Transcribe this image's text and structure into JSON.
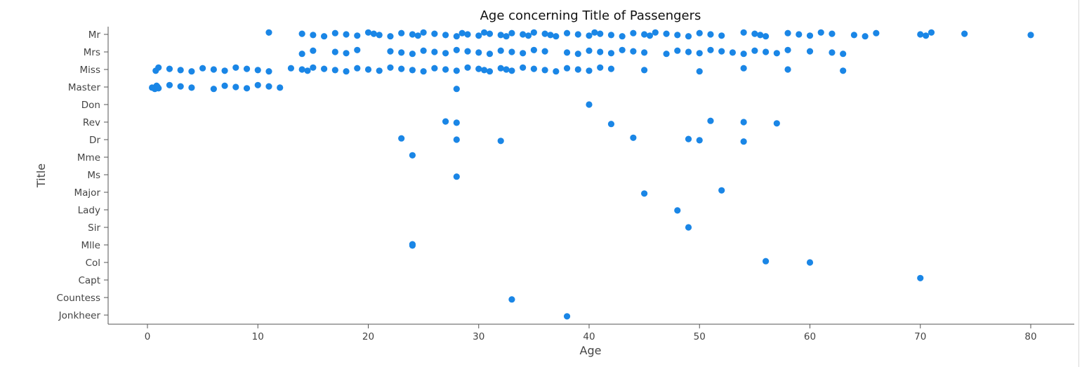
{
  "chart_data": {
    "type": "scatter",
    "title": "Age concerning Title of Passengers",
    "xlabel": "Age",
    "ylabel": "Title",
    "xlim": [
      -3.5,
      84.5
    ],
    "xticks": [
      0,
      10,
      20,
      30,
      40,
      50,
      60,
      70,
      80
    ],
    "categories": [
      "Mr",
      "Mrs",
      "Miss",
      "Master",
      "Don",
      "Rev",
      "Dr",
      "Mme",
      "Ms",
      "Major",
      "Lady",
      "Sir",
      "Mlle",
      "Col",
      "Capt",
      "Countess",
      "Jonkheer"
    ],
    "grid": false,
    "legend": "none",
    "point_color": "#1a86e6",
    "series": [
      {
        "category": "Mr",
        "x": [
          11,
          14,
          15,
          16,
          17,
          18,
          19,
          20,
          20.5,
          21,
          22,
          23,
          24,
          24.5,
          25,
          26,
          27,
          28,
          28.5,
          29,
          30,
          30.5,
          31,
          32,
          32.5,
          33,
          34,
          34.5,
          35,
          36,
          36.5,
          37,
          38,
          39,
          40,
          40.5,
          41,
          42,
          43,
          44,
          45,
          45.5,
          46,
          47,
          48,
          49,
          50,
          51,
          52,
          54,
          55,
          55.5,
          56,
          58,
          59,
          60,
          61,
          62,
          64,
          65,
          66,
          70,
          70.5,
          71,
          74,
          80
        ]
      },
      {
        "category": "Mrs",
        "x": [
          14,
          15,
          17,
          18,
          19,
          22,
          23,
          24,
          25,
          26,
          27,
          28,
          29,
          30,
          31,
          32,
          33,
          34,
          35,
          36,
          38,
          39,
          40,
          41,
          42,
          43,
          44,
          45,
          47,
          48,
          49,
          50,
          51,
          52,
          53,
          54,
          55,
          56,
          57,
          58,
          60,
          62,
          63
        ]
      },
      {
        "category": "Miss",
        "x": [
          0.75,
          1,
          2,
          3,
          4,
          5,
          6,
          7,
          8,
          9,
          10,
          11,
          13,
          14,
          14.5,
          15,
          16,
          17,
          18,
          19,
          20,
          21,
          22,
          23,
          24,
          25,
          26,
          27,
          28,
          29,
          30,
          30.5,
          31,
          32,
          32.5,
          33,
          34,
          35,
          36,
          37,
          38,
          39,
          40,
          41,
          42,
          45,
          50,
          54,
          58,
          63
        ]
      },
      {
        "category": "Master",
        "x": [
          0.42,
          0.67,
          0.83,
          0.92,
          1,
          2,
          3,
          4,
          6,
          7,
          8,
          9,
          10,
          11,
          12,
          28
        ]
      },
      {
        "category": "Don",
        "x": [
          40
        ]
      },
      {
        "category": "Rev",
        "x": [
          27,
          28,
          42,
          51,
          54,
          57
        ]
      },
      {
        "category": "Dr",
        "x": [
          23,
          28,
          32,
          44,
          49,
          50,
          54
        ]
      },
      {
        "category": "Mme",
        "x": [
          24
        ]
      },
      {
        "category": "Ms",
        "x": [
          28
        ]
      },
      {
        "category": "Major",
        "x": [
          45,
          52
        ]
      },
      {
        "category": "Lady",
        "x": [
          48
        ]
      },
      {
        "category": "Sir",
        "x": [
          49
        ]
      },
      {
        "category": "Mlle",
        "x": [
          24,
          24
        ]
      },
      {
        "category": "Col",
        "x": [
          56,
          60
        ]
      },
      {
        "category": "Capt",
        "x": [
          70
        ]
      },
      {
        "category": "Countess",
        "x": [
          33
        ]
      },
      {
        "category": "Jonkheer",
        "x": [
          38
        ]
      }
    ]
  }
}
